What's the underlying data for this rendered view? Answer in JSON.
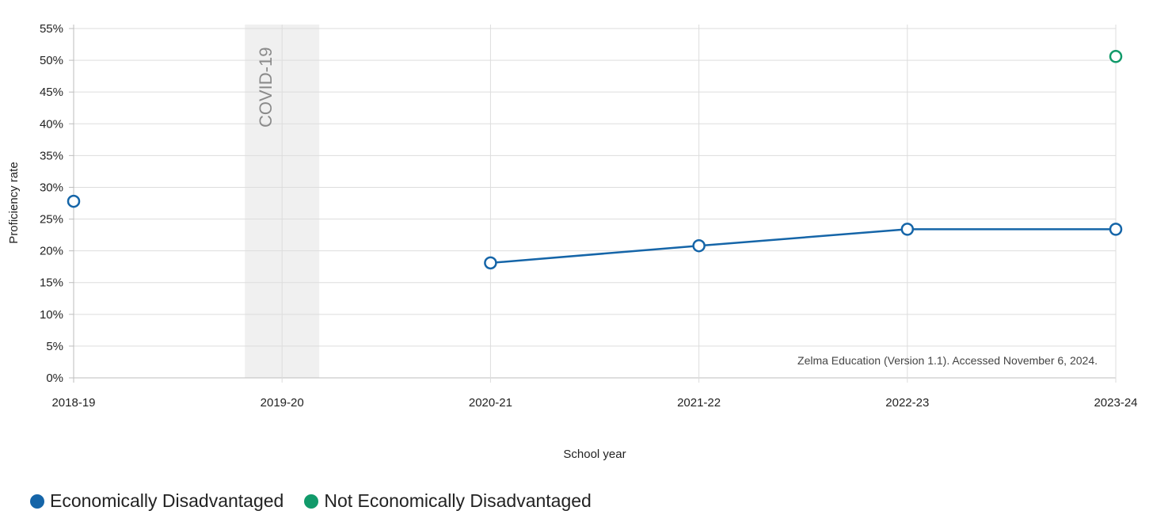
{
  "chart_data": {
    "type": "line",
    "categories": [
      "2018-19",
      "2019-20",
      "2020-21",
      "2021-22",
      "2022-23",
      "2023-24"
    ],
    "series": [
      {
        "name": "Economically Disadvantaged",
        "color": "#1565a8",
        "values": [
          27.8,
          null,
          18.1,
          20.8,
          23.4,
          23.4
        ]
      },
      {
        "name": "Not Economically Disadvantaged",
        "color": "#119a6a",
        "values": [
          null,
          null,
          null,
          null,
          null,
          50.6
        ]
      }
    ],
    "xlabel": "School year",
    "ylabel": "Proficiency rate",
    "ylim": [
      0,
      55
    ],
    "yticks": [
      "0%",
      "5%",
      "10%",
      "15%",
      "20%",
      "25%",
      "30%",
      "35%",
      "40%",
      "45%",
      "50%",
      "55%"
    ],
    "grid": true,
    "legend_position": "bottom-left",
    "highlight_band": {
      "category": "2019-20",
      "label": "COVID-19",
      "color": "#f0f0f0"
    },
    "annotation": "Zelma Education (Version 1.1). Accessed November 6, 2024."
  }
}
